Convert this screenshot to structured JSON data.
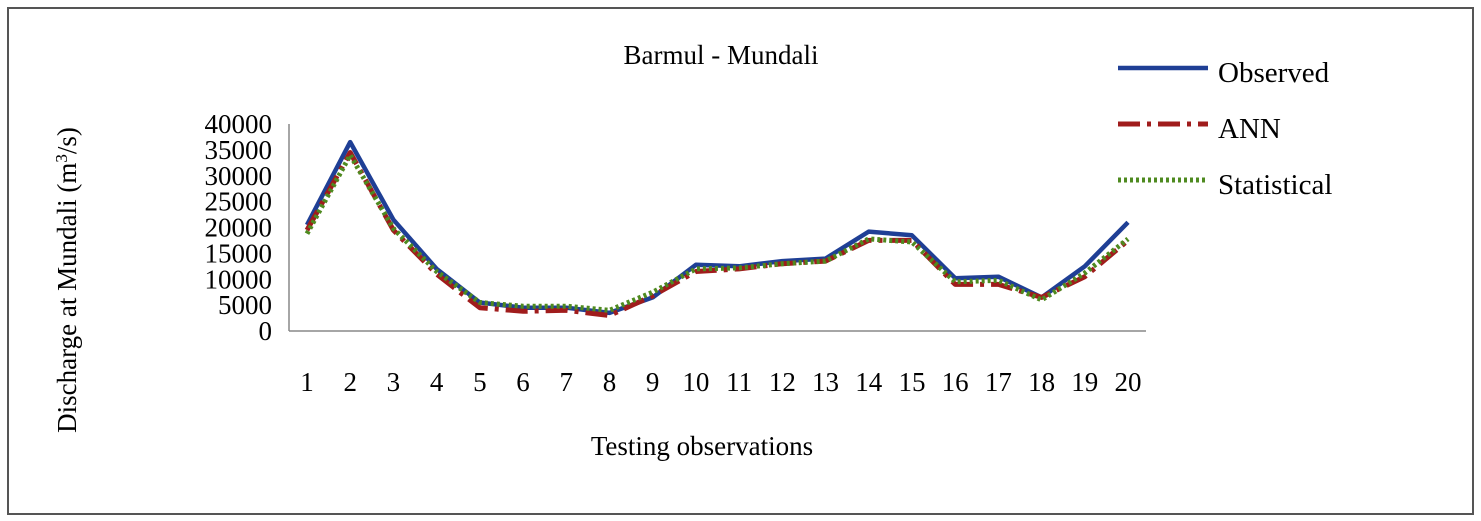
{
  "chart_data": {
    "type": "line",
    "title": "Barmul - Mundali",
    "xlabel": "Testing observations",
    "ylabel_main": "Discharge at Mundali (m",
    "ylabel_sup": "3",
    "ylabel_end": "/s)",
    "ylim": [
      0,
      40000
    ],
    "yticks": [
      "0",
      "5000",
      "10000",
      "15000",
      "20000",
      "25000",
      "30000",
      "35000",
      "40000"
    ],
    "x": [
      "1",
      "2",
      "3",
      "4",
      "5",
      "6",
      "7",
      "8",
      "9",
      "10",
      "11",
      "12",
      "13",
      "14",
      "15",
      "16",
      "17",
      "18",
      "19",
      "20"
    ],
    "grid": false,
    "legend_position": "top-right",
    "series": [
      {
        "name": "Observed",
        "color": "#1F3F95",
        "style": "solid",
        "values": [
          20500,
          36500,
          21500,
          12000,
          5500,
          4500,
          4500,
          3500,
          6500,
          12800,
          12500,
          13500,
          14000,
          19200,
          18500,
          10200,
          10500,
          6500,
          12500,
          21000
        ]
      },
      {
        "name": "ANN",
        "color": "#A01C1C",
        "style": "dashdot",
        "values": [
          19500,
          34500,
          19500,
          11000,
          4500,
          3800,
          4000,
          3000,
          6800,
          11500,
          12000,
          13000,
          13500,
          17500,
          17500,
          9000,
          9000,
          6500,
          10500,
          17500
        ]
      },
      {
        "name": "Statistical",
        "color": "#4E8A1F",
        "style": "dotted",
        "values": [
          18800,
          34000,
          19800,
          11500,
          5500,
          4800,
          4800,
          4000,
          7500,
          12000,
          12200,
          13000,
          13500,
          17800,
          17200,
          9500,
          9800,
          6000,
          11200,
          17800
        ]
      }
    ]
  }
}
